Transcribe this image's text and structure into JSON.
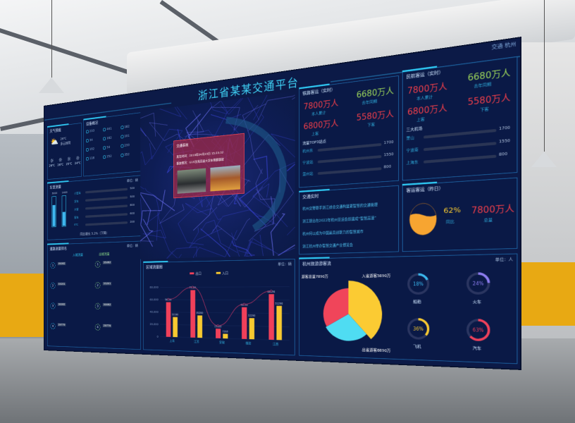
{
  "header": {
    "title": "浙江省某某交通平台",
    "top_right": "交通 杭州"
  },
  "weather": {
    "title": "天气预报",
    "today_temp": "26℃",
    "today_desc": "多云转阴",
    "days": [
      {
        "temp": "26℃"
      },
      {
        "temp": "26℃"
      },
      {
        "temp": "25℃"
      },
      {
        "temp": "24℃"
      }
    ]
  },
  "devices": {
    "title": "设备概况",
    "values": [
      "233",
      "441",
      "182",
      "34",
      "162",
      "101",
      "192",
      "54",
      "233",
      "118",
      "252",
      "352"
    ]
  },
  "vehicles": {
    "title": "车型流量",
    "unit": "单位：辆",
    "vbars": [
      {
        "value": "3000",
        "fill": 0.7
      },
      {
        "value": "1400",
        "fill": 0.45
      }
    ],
    "hbars": [
      {
        "label": "小型车",
        "value": "500",
        "fill": 0.55
      },
      {
        "label": "货车",
        "value": "500",
        "fill": 0.75
      },
      {
        "label": "大客",
        "value": "800",
        "fill": 0.42
      },
      {
        "label": "客车",
        "value": "600",
        "fill": 0.22
      },
      {
        "label": "ETC",
        "value": "200",
        "fill": 0.13
      }
    ],
    "footer": "同比增长 5.2%（下降）"
  },
  "ranking": {
    "title": "道路流量排名",
    "unit": "单位：辆",
    "legend": [
      "入城流量",
      "出城流量"
    ],
    "left": [
      {
        "rank": "1",
        "value": "35082",
        "fill": 0.85
      },
      {
        "rank": "2",
        "value": "33201",
        "fill": 0.75
      },
      {
        "rank": "3",
        "value": "30082",
        "fill": 0.68
      },
      {
        "rank": "4",
        "value": "29779",
        "fill": 0.55
      }
    ],
    "right": [
      {
        "rank": "1",
        "value": "35082",
        "fill": 0.9
      },
      {
        "rank": "2",
        "value": "33201",
        "fill": 0.8
      },
      {
        "rank": "3",
        "value": "30082",
        "fill": 0.68
      },
      {
        "rank": "4",
        "value": "29779",
        "fill": 0.55
      }
    ]
  },
  "accident": {
    "title": "交通事故",
    "time": "发生时间：2019年04月23日 15:23:32",
    "desc": "事故概况：G15沈海高速大货车侧翻事故"
  },
  "chart_data": {
    "type": "bar",
    "title": "区域流量图",
    "unit": "单位：辆",
    "categories": [
      "上海",
      "江苏",
      "安徽",
      "福建",
      "江西"
    ],
    "series": [
      {
        "name": "出口",
        "values": [
          56089,
          75426,
          15000,
          48750,
          68836
        ],
        "color": "#f0405a"
      },
      {
        "name": "入口",
        "values": [
          32190,
          35290,
          7268,
          32290,
          51290
        ],
        "color": "#f7c930"
      }
    ],
    "line_series": "出口",
    "yticks": [
      "0",
      "20,000",
      "40,000",
      "60,000",
      "80,000"
    ],
    "ylim": [
      0,
      85000
    ]
  },
  "rail": {
    "title": "铁路客运（实时）",
    "total": "7800万人",
    "total_label": "本人累计",
    "last_year": "6680万人",
    "last_year_label": "去年同期",
    "on": "6800万人",
    "on_label": "上客",
    "off": "5580万人",
    "off_label": "下客",
    "top_title": "流量TOP3站点",
    "top": [
      {
        "label": "杭州东",
        "value": "1700",
        "fill": 0.9
      },
      {
        "label": "宁波站",
        "value": "1550",
        "fill": 0.7
      },
      {
        "label": "温州站",
        "value": "800",
        "fill": 0.5
      }
    ]
  },
  "air": {
    "title": "民航客运（实时）",
    "total": "7800万人",
    "total_label": "本人累计",
    "last_year": "6680万人",
    "last_year_label": "去年同期",
    "on": "6800万人",
    "on_label": "上客",
    "off": "5580万人",
    "off_label": "下客",
    "top_title": "三大机场",
    "top": [
      {
        "label": "萧山",
        "value": "1700",
        "fill": 0.88
      },
      {
        "label": "宁波南",
        "value": "1550",
        "fill": 0.68
      },
      {
        "label": "上海东",
        "value": "800",
        "fill": 0.48
      }
    ]
  },
  "news": {
    "title": "交通实时",
    "items": [
      "杭州交警联手浙江综合交通构建更智慧的交通管理",
      "浙江提出在2022年杭州亚运会前建成“智慧高速”",
      "杭州何以成为中国最具创新力的智慧城市",
      "浙江杭州举办智慧交通产业博览会"
    ]
  },
  "yesterday": {
    "title": "客运客运（昨日）",
    "pct": "62%",
    "pct_label": "同比",
    "total": "7800万人",
    "total_label": "总量",
    "fill": 0.62
  },
  "tourism": {
    "title": "杭州旅游游客流",
    "unit": "单位：人",
    "pie": [
      {
        "label": "游客总量7890万",
        "value": 7890,
        "color": "#fbcb33"
      },
      {
        "label": "入省游客5890万",
        "value": 5890,
        "color": "#4fdcf2"
      },
      {
        "label": "出省游客6890万",
        "value": 6890,
        "color": "#f0455a"
      }
    ],
    "rings": [
      {
        "pct": "18%",
        "value": 18,
        "label": "船舶",
        "color": "#3ab8ef"
      },
      {
        "pct": "24%",
        "value": 24,
        "label": "火车",
        "color": "#8c7cf0"
      },
      {
        "pct": "36%",
        "value": 36,
        "label": "飞机",
        "color": "#f7c930"
      },
      {
        "pct": "63%",
        "value": 63,
        "label": "汽车",
        "color": "#f0405a"
      }
    ]
  }
}
